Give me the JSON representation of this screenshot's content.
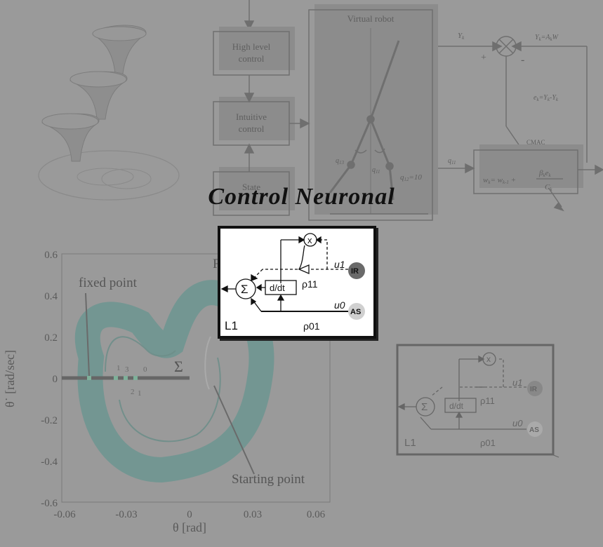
{
  "title": "Control Neuronal",
  "top_diagram": {
    "boxes": [
      "High level\ncontrol",
      "Intuitive\ncontrol",
      "State"
    ],
    "virtual_robot_label": "Virtual robot",
    "q13": "q13",
    "q11": "q11",
    "q12_eq": "q12=10",
    "yk_label": "Yk",
    "plus": "+",
    "minus": "-",
    "yk_eq": "Yk=AkTW",
    "ek_eq": "ek=Ykd-Yk",
    "q11_label": "q11",
    "cmac_label": "CMAC",
    "cmac_eq": "wk = wk-1 + βk ek / Ck"
  },
  "plot": {
    "yticks": [
      "0.6",
      "0.4",
      "0.2",
      "0",
      "-0.2",
      "-0.4",
      "-0.6"
    ],
    "xticks": [
      "-0.06",
      "-0.03",
      "0",
      "0.03",
      "0.06"
    ],
    "ylabel": "θ˙ [rad/sec]",
    "xlabel": "θ [rad]",
    "fixed_point": "fixed point",
    "starting_point": "Starting point",
    "partial_label": "F",
    "sigma": "Σ",
    "marks": [
      "1",
      "3",
      "0",
      "2",
      "1"
    ]
  },
  "circuit": {
    "x_node": "x",
    "u1": "u1",
    "ir": "IR",
    "rho1_1": "ρ11",
    "sigma": "Σ",
    "ddt": "d/dt",
    "u0": "u0",
    "as": "AS",
    "l1": "L1",
    "rho1_0": "ρ01"
  }
}
